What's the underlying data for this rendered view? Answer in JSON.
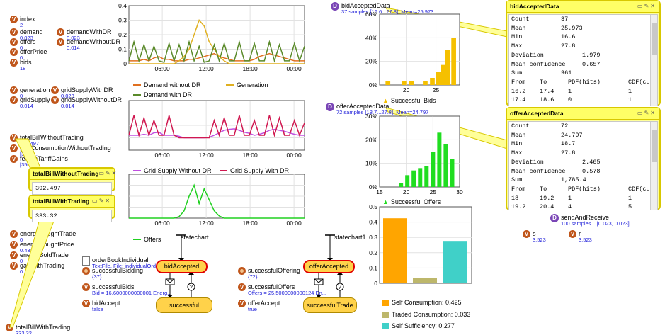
{
  "colors": {
    "demand_without_dr": "#e07020",
    "generation": "#e0b020",
    "demand_with_dr": "#5a8a2a",
    "grid_supply_without_dr": "#c050e0",
    "grid_supply_with_dr": "#d01850",
    "offers": "#20d020",
    "bids_bar": "#f5c000",
    "offers_bar": "#20dd20",
    "self_consumption": "#ffa500",
    "traded_consumption": "#bdb76b",
    "self_sufficiency": "#40d0c8"
  },
  "variables_top": [
    {
      "name": "index",
      "value": "2"
    },
    {
      "name": "demand",
      "value": "0.023"
    },
    {
      "name": "offers",
      "value": "0"
    },
    {
      "name": "offerPrice",
      "value": "0"
    },
    {
      "name": "bids",
      "value": "18"
    }
  ],
  "variables_top2": [
    {
      "name": "demandWithDR",
      "value": "0.023"
    },
    {
      "name": "demandWithoutDR",
      "value": "0.014"
    }
  ],
  "variables_mid": [
    {
      "name": "generation",
      "value": "0"
    },
    {
      "name": "gridSupply",
      "value": "0.014"
    }
  ],
  "variables_mid2": [
    {
      "name": "gridSupplyWithDR",
      "value": "0.023"
    },
    {
      "name": "gridSupplyWithoutDR",
      "value": "0.014"
    }
  ],
  "variables_bill": [
    {
      "name": "totalBillWithoutTrading",
      "value": "392.497"
    },
    {
      "name": "gridConsumptionWithoutTrading",
      "value": "[3503..."
    },
    {
      "name": "feedInTariffGains",
      "value": "[35039]"
    }
  ],
  "variables_energy": [
    {
      "name": "energyBoughtTrade",
      "value": "0"
    },
    {
      "name": "energyBoughtPrice",
      "value": "0.432"
    },
    {
      "name": "energySoldTrade",
      "value": "0"
    },
    {
      "name": "gainwithTrading",
      "value": "0"
    }
  ],
  "bottom_var": {
    "name": "totalBillWithTrading",
    "value": "333.32"
  },
  "win_bill_without": {
    "title": "totalBillWithoutTrading",
    "value": "392.497"
  },
  "win_bill_with": {
    "title": "totalBillWithTrading",
    "value": "333.32"
  },
  "order_book": {
    "name": "orderBookIndividual",
    "value": "TextFile, File: individualOrd..."
  },
  "succ_bidding": {
    "name": "successfulBidding",
    "value": "{37}"
  },
  "succ_bids": {
    "name": "successfulBids",
    "value": "Bid = 16.6000000000001 Energ..."
  },
  "bid_accept": {
    "name": "bidAccept",
    "value": "false"
  },
  "succ_offering": {
    "name": "successfulOffering",
    "value": "{72}"
  },
  "succ_offers": {
    "name": "successfulOffers",
    "value": "Offers = 25.5000000000124 En..."
  },
  "offer_accept": {
    "name": "offerAccept",
    "value": "true"
  },
  "statechart1": {
    "label": "statechart",
    "state_top": "bidAccepted",
    "state_bottom": "successful"
  },
  "statechart2": {
    "label": "statechart1",
    "state_top": "offerAccepted",
    "state_bottom": "successfulTrade"
  },
  "bid_data": {
    "name": "bidAcceptedData",
    "value": "37 samples [16.6...27.8], Mean=25.973"
  },
  "offer_data": {
    "name": "offerAcceptedData",
    "value": "72 samples [18.7...27.8], Mean=24.797"
  },
  "send_receive": {
    "name": "sendAndReceive",
    "value": "100 samples ...[0.023, 0.023]"
  },
  "var_s": {
    "name": "s",
    "value": "3.523"
  },
  "var_r": {
    "name": "r",
    "value": "3.523"
  },
  "bid_stats": {
    "title": "bidAcceptedData",
    "rows": [
      [
        "Count",
        "37"
      ],
      [
        "Mean",
        "25.973"
      ],
      [
        "Min",
        "16.6"
      ],
      [
        "Max",
        "27.8"
      ],
      [
        "Deviation",
        "1.979"
      ],
      [
        "Mean confidence",
        "0.657"
      ],
      [
        "Sum",
        "961"
      ]
    ],
    "header": [
      "From",
      "To",
      "PDF(hits)",
      "CDF(cum"
    ],
    "table": [
      [
        "16.2",
        "17.4",
        "1",
        "1"
      ],
      [
        "17.4",
        "18.6",
        "0",
        "1"
      ]
    ]
  },
  "offer_stats": {
    "title": "offerAcceptedData",
    "rows": [
      [
        "Count",
        "72"
      ],
      [
        "Mean",
        "24.797"
      ],
      [
        "Min",
        "18.7"
      ],
      [
        "Max",
        "27.8"
      ],
      [
        "Deviation",
        "2.465"
      ],
      [
        "Mean confidence",
        "0.578"
      ],
      [
        "Sum",
        "1,785.4"
      ]
    ],
    "header": [
      "From",
      "To",
      "PDF(hits)",
      "CDF(cum"
    ],
    "table": [
      [
        "18",
        "19.2",
        "1",
        "1"
      ],
      [
        "19.2",
        "20.4",
        "4",
        "5"
      ]
    ]
  },
  "chart_data": [
    {
      "type": "line",
      "x_ticks": [
        "06:00",
        "12:00",
        "18:00",
        "00:00"
      ],
      "ylim": [
        0,
        0.4
      ],
      "y_ticks": [
        "0",
        "0.1",
        "0.2",
        "0.3",
        "0.4"
      ],
      "series": [
        {
          "name": "Demand without DR",
          "values": [
            0.02,
            0.02,
            0.02,
            0.03,
            0.02,
            0.04,
            0.05,
            0.03,
            0.03,
            0.02,
            0.02,
            0.02,
            0.03,
            0.03,
            0.04,
            0.05,
            0.06,
            0.07,
            0.05,
            0.04,
            0.03,
            0.02,
            0.02,
            0.02,
            0.02,
            0.03,
            0.05,
            0.06,
            0.07,
            0.06,
            0.05,
            0.04,
            0.03,
            0.02,
            0.02,
            0.02
          ]
        },
        {
          "name": "Generation",
          "values": [
            0,
            0,
            0,
            0,
            0,
            0,
            0,
            0,
            0,
            0,
            0.02,
            0.05,
            0.1,
            0.2,
            0.3,
            0.26,
            0.15,
            0.1,
            0.05,
            0.02,
            0,
            0,
            0,
            0,
            0,
            0,
            0,
            0,
            0,
            0,
            0,
            0,
            0,
            0,
            0,
            0
          ]
        },
        {
          "name": "Demand with DR",
          "values": [
            0.02,
            0.15,
            0.02,
            0.13,
            0.02,
            0.12,
            0.02,
            0.01,
            0.14,
            0.02,
            0.13,
            0.02,
            0.15,
            0.02,
            0.12,
            0.01,
            0.02,
            0.13,
            0.02,
            0.14,
            0.02,
            0.02,
            0.15,
            0.02,
            0.02,
            0.14,
            0.02,
            0.02,
            0.15,
            0.02,
            0.13,
            0.02,
            0.02,
            0.14,
            0.02,
            0.12
          ]
        }
      ]
    },
    {
      "type": "line",
      "x_ticks": [
        "06:00",
        "12:00",
        "18:00",
        "00:00"
      ],
      "series": [
        {
          "name": "Grid Supply Without DR",
          "values": [
            0.3,
            0.3,
            0.3,
            0.32,
            0.3,
            0.35,
            0.36,
            0.3,
            0.3,
            0.3,
            0.28,
            0.25,
            0.25,
            0.25,
            0.25,
            0.25,
            0.26,
            0.3,
            0.35,
            0.4,
            0.42,
            0.43,
            0.4,
            0.36,
            0.34,
            0.3,
            0.32,
            0.35,
            0.4,
            0.42,
            0.4,
            0.38,
            0.35,
            0.32,
            0.3,
            0.3
          ]
        },
        {
          "name": "Grid Supply With DR",
          "values": [
            0.3,
            0.7,
            0.3,
            0.65,
            0.3,
            0.6,
            0.3,
            0.3,
            0.7,
            0.3,
            0.25,
            0.25,
            0.25,
            0.25,
            0.25,
            0.25,
            0.25,
            0.6,
            0.3,
            0.65,
            0.3,
            0.3,
            0.7,
            0.3,
            0.3,
            0.6,
            0.3,
            0.3,
            0.7,
            0.3,
            0.65,
            0.3,
            0.3,
            0.6,
            0.3,
            0.55
          ]
        }
      ]
    },
    {
      "type": "line",
      "x_ticks": [
        "06:00",
        "12:00",
        "18:00",
        "00:00"
      ],
      "series": [
        {
          "name": "Offers",
          "values": [
            0,
            0,
            0,
            0,
            0,
            0,
            0,
            0,
            0,
            0,
            0.02,
            0.1,
            0.3,
            0.45,
            0.2,
            0.4,
            0.25,
            0.1,
            0.03,
            0,
            0,
            0,
            0,
            0,
            0,
            0,
            0,
            0,
            0,
            0,
            0,
            0,
            0,
            0,
            0,
            0
          ]
        }
      ]
    },
    {
      "type": "bar",
      "name": "Successful Bids",
      "x_ticks": [
        "20",
        "25"
      ],
      "y_ticks": [
        "0%",
        "20%",
        "40%",
        "60%"
      ],
      "ylim": [
        0,
        60
      ],
      "bins": [
        [
          16.5,
          3
        ],
        [
          19.2,
          3
        ],
        [
          20.5,
          3
        ],
        [
          22.8,
          3
        ],
        [
          24,
          6
        ],
        [
          25,
          11
        ],
        [
          25.8,
          17
        ],
        [
          26.6,
          30
        ],
        [
          27.6,
          40
        ]
      ]
    },
    {
      "type": "bar",
      "name": "Successful Offers",
      "x_ticks": [
        "15",
        "20",
        "25",
        "30"
      ],
      "y_ticks": [
        "0%",
        "10%",
        "20%",
        "30%"
      ],
      "ylim": [
        0,
        30
      ],
      "bins": [
        [
          18.6,
          1.5
        ],
        [
          19.8,
          5
        ],
        [
          21,
          7
        ],
        [
          22.2,
          8
        ],
        [
          23.4,
          9
        ],
        [
          24.6,
          15
        ],
        [
          25.8,
          23
        ],
        [
          27,
          18
        ],
        [
          28.2,
          12
        ]
      ]
    },
    {
      "type": "bar",
      "y_ticks": [
        "0",
        "0.1",
        "0.2",
        "0.3",
        "0.4",
        "0.5"
      ],
      "ylim": [
        0,
        0.5
      ],
      "categories": [
        "Self Consumption",
        "Traded Consumption",
        "Self Sufficiency"
      ],
      "values": [
        0.425,
        0.033,
        0.277
      ],
      "legend": [
        "Self Consumption: 0.425",
        "Traded Consumption: 0.033",
        "Self Sufficiency: 0.277"
      ]
    }
  ],
  "legend1": [
    "Demand without DR",
    "Generation",
    "Demand with DR"
  ],
  "legend2": [
    "Grid Supply Without DR",
    "Grid Supply With DR"
  ],
  "legend3": [
    "Offers"
  ],
  "legend4": [
    "Successful Bids"
  ],
  "legend5": [
    "Successful Offers"
  ]
}
